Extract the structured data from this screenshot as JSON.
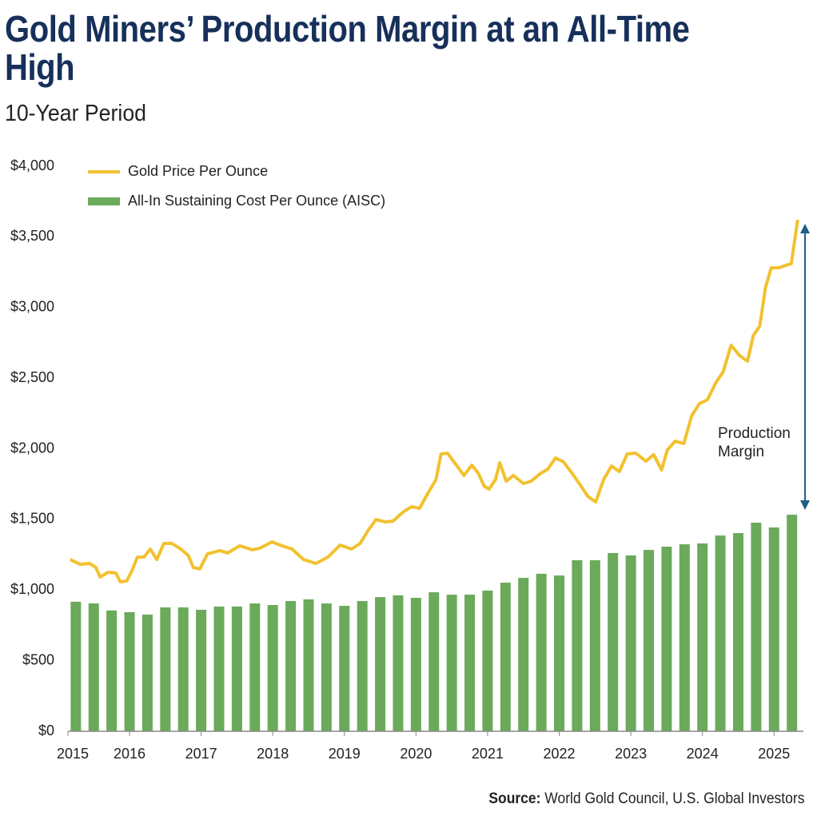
{
  "chart_data": {
    "type": "combo",
    "title": "Gold Miners’ Production Margin at an All-Time High",
    "subtitle": "10-Year Period",
    "annotation": "Production Margin",
    "source_label": "Source:",
    "source": "World Gold Council, U.S. Global Investors",
    "xlim": [
      2015.14,
      2025.41
    ],
    "xticks": [
      2015,
      2016,
      2017,
      2018,
      2019,
      2020,
      2021,
      2022,
      2023,
      2024,
      2025
    ],
    "ylim": [
      0,
      4000
    ],
    "yticks": [
      {
        "value": 0,
        "label": "$0"
      },
      {
        "value": 500,
        "label": "$500"
      },
      {
        "value": 1000,
        "label": "$1,000"
      },
      {
        "value": 1500,
        "label": "$1,500"
      },
      {
        "value": 2000,
        "label": "$2,000"
      },
      {
        "value": 2500,
        "label": "$2,500"
      },
      {
        "value": 3000,
        "label": "$3,000"
      },
      {
        "value": 3500,
        "label": "$3,500"
      },
      {
        "value": 4000,
        "label": "$4,000"
      }
    ],
    "grid": false,
    "legend": "top-left",
    "series": [
      {
        "name": "Gold Price Per Ounce",
        "type": "line",
        "color": "#f2c12e",
        "x": [
          2015.17,
          2015.31,
          2015.44,
          2015.53,
          2015.59,
          2015.7,
          2015.81,
          2015.87,
          2015.96,
          2016.03,
          2016.11,
          2016.2,
          2016.29,
          2016.38,
          2016.48,
          2016.59,
          2016.7,
          2016.82,
          2016.89,
          2016.98,
          2017.09,
          2017.26,
          2017.37,
          2017.54,
          2017.71,
          2017.82,
          2017.99,
          2018.1,
          2018.27,
          2018.43,
          2018.6,
          2018.77,
          2018.94,
          2019.1,
          2019.22,
          2019.33,
          2019.44,
          2019.57,
          2019.68,
          2019.83,
          2019.94,
          2020.05,
          2020.16,
          2020.28,
          2020.35,
          2020.44,
          2020.58,
          2020.67,
          2020.78,
          2020.87,
          2020.95,
          2021.02,
          2021.11,
          2021.17,
          2021.26,
          2021.36,
          2021.5,
          2021.61,
          2021.73,
          2021.84,
          2021.95,
          2022.06,
          2022.17,
          2022.28,
          2022.4,
          2022.51,
          2022.62,
          2022.73,
          2022.84,
          2022.95,
          2023.07,
          2023.21,
          2023.32,
          2023.43,
          2023.51,
          2023.62,
          2023.74,
          2023.85,
          2023.96,
          2024.07,
          2024.18,
          2024.29,
          2024.4,
          2024.52,
          2024.63,
          2024.71,
          2024.8,
          2024.88,
          2024.96,
          2025.07,
          2025.16,
          2025.24,
          2025.33
        ],
        "values": [
          1216,
          1182,
          1188,
          1160,
          1092,
          1126,
          1120,
          1058,
          1064,
          1132,
          1233,
          1233,
          1290,
          1216,
          1330,
          1330,
          1296,
          1245,
          1160,
          1149,
          1256,
          1279,
          1262,
          1313,
          1285,
          1296,
          1341,
          1318,
          1290,
          1216,
          1188,
          1233,
          1318,
          1290,
          1330,
          1420,
          1499,
          1482,
          1488,
          1556,
          1590,
          1578,
          1680,
          1782,
          1963,
          1969,
          1873,
          1811,
          1884,
          1827,
          1737,
          1714,
          1782,
          1901,
          1771,
          1811,
          1754,
          1771,
          1822,
          1856,
          1935,
          1907,
          1833,
          1754,
          1663,
          1624,
          1782,
          1878,
          1839,
          1963,
          1969,
          1912,
          1958,
          1850,
          1992,
          2054,
          2037,
          2235,
          2320,
          2348,
          2461,
          2546,
          2733,
          2659,
          2620,
          2801,
          2868,
          3140,
          3281,
          3281,
          3298,
          3310,
          3621
        ]
      },
      {
        "name": "All-In Sustaining Cost Per Ounce (AISC)",
        "type": "bar",
        "color": "#6aaa5a",
        "x": [
          2015.25,
          2015.5,
          2015.75,
          2016,
          2016.25,
          2016.5,
          2016.75,
          2017,
          2017.25,
          2017.5,
          2017.75,
          2018,
          2018.25,
          2018.5,
          2018.75,
          2019,
          2019.25,
          2019.5,
          2019.75,
          2020,
          2020.25,
          2020.5,
          2020.75,
          2021,
          2021.25,
          2021.5,
          2021.75,
          2022,
          2022.25,
          2022.5,
          2022.75,
          2023,
          2023.25,
          2023.5,
          2023.75,
          2024,
          2024.25,
          2024.5,
          2024.75,
          2025,
          2025.25
        ],
        "values": [
          917,
          905,
          855,
          843,
          826,
          877,
          877,
          860,
          883,
          883,
          905,
          894,
          922,
          934,
          905,
          888,
          922,
          950,
          962,
          945,
          984,
          967,
          967,
          996,
          1052,
          1086,
          1115,
          1103,
          1211,
          1211,
          1262,
          1245,
          1284,
          1307,
          1324,
          1330,
          1386,
          1403,
          1477,
          1443,
          1533
        ]
      }
    ]
  }
}
